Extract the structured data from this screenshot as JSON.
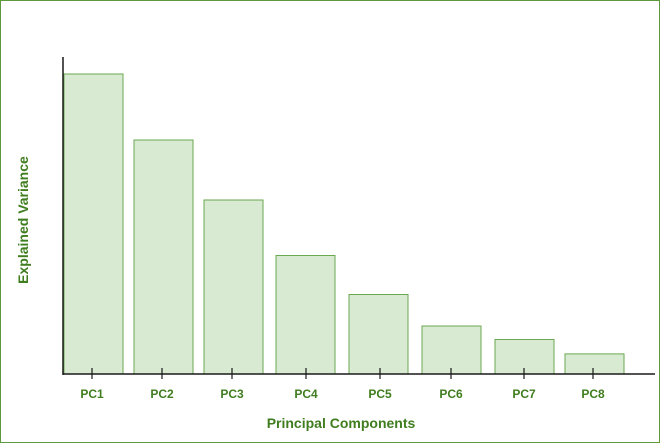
{
  "chart_data": {
    "type": "bar",
    "title": "",
    "xlabel": "Principal Components",
    "ylabel": "Explained Variance",
    "categories": [
      "PC1",
      "PC2",
      "PC3",
      "PC4",
      "PC5",
      "PC6",
      "PC7",
      "PC8"
    ],
    "values": [
      100,
      78,
      58,
      39.5,
      26.5,
      16,
      11.5,
      6.7
    ],
    "ylim": [
      0,
      105
    ],
    "grid": false,
    "legend": "none",
    "colors": {
      "bar_fill": "#d9ead3",
      "bar_stroke": "#6aa84f",
      "axis": "#1a1a1a",
      "text": "#3f7d1f",
      "frame": "#5e9a3c"
    }
  }
}
